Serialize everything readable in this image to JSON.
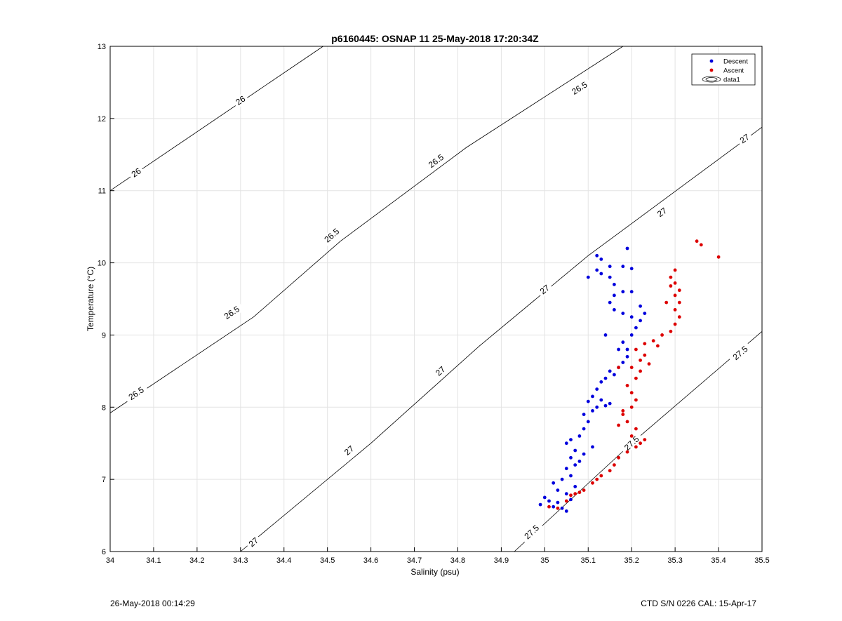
{
  "chart_data": {
    "type": "scatter",
    "title": "p6160445: OSNAP 11 25-May-2018 17:20:34Z",
    "xlabel": "Salinity (psu)",
    "ylabel": "Temperature (°C)",
    "xlim": [
      34,
      35.5
    ],
    "ylim": [
      6,
      13
    ],
    "xticks": [
      "34",
      "34.1",
      "34.2",
      "34.3",
      "34.4",
      "34.5",
      "34.6",
      "34.7",
      "34.8",
      "34.9",
      "35",
      "35.1",
      "35.2",
      "35.3",
      "35.4",
      "35.5"
    ],
    "yticks": [
      "6",
      "7",
      "8",
      "9",
      "10",
      "11",
      "12",
      "13"
    ],
    "grid": true,
    "legend": {
      "placement": "top-right",
      "entries": [
        "Descent",
        "Ascent",
        "data1"
      ]
    },
    "contour_lines": [
      {
        "level": "26",
        "points": [
          [
            34.0,
            11.0
          ],
          [
            34.49,
            13.0
          ]
        ],
        "labels": [
          [
            34.06,
            11.25
          ],
          [
            34.3,
            12.25
          ]
        ]
      },
      {
        "level": "26.5",
        "points": [
          [
            34.0,
            7.92
          ],
          [
            34.33,
            9.25
          ],
          [
            34.53,
            10.3
          ],
          [
            34.82,
            11.6
          ],
          [
            35.18,
            13.0
          ]
        ],
        "labels": [
          [
            34.06,
            8.19
          ],
          [
            34.28,
            9.31
          ],
          [
            34.51,
            10.38
          ],
          [
            34.75,
            11.41
          ],
          [
            35.08,
            12.42
          ]
        ]
      },
      {
        "level": "27",
        "points": [
          [
            34.3,
            6.0
          ],
          [
            34.6,
            7.5
          ],
          [
            34.85,
            8.85
          ],
          [
            35.1,
            10.1
          ],
          [
            35.5,
            11.88
          ]
        ],
        "labels": [
          [
            34.33,
            6.13
          ],
          [
            34.55,
            7.4
          ],
          [
            34.76,
            8.5
          ],
          [
            35.0,
            9.63
          ],
          [
            35.27,
            10.7
          ],
          [
            35.46,
            11.72
          ]
        ]
      },
      {
        "level": "27.5",
        "points": [
          [
            34.93,
            6.0
          ],
          [
            35.2,
            7.5
          ],
          [
            35.5,
            9.05
          ]
        ],
        "labels": [
          [
            34.97,
            6.27
          ],
          [
            35.2,
            7.5
          ],
          [
            35.45,
            8.75
          ]
        ]
      }
    ],
    "series": [
      {
        "name": "Descent",
        "color": "#0000dd",
        "points": [
          [
            34.99,
            6.65
          ],
          [
            35.01,
            6.7
          ],
          [
            35.02,
            6.62
          ],
          [
            35.04,
            6.6
          ],
          [
            35.05,
            6.56
          ],
          [
            35.06,
            6.72
          ],
          [
            35.05,
            6.8
          ],
          [
            35.03,
            6.85
          ],
          [
            35.02,
            6.95
          ],
          [
            35.04,
            7.0
          ],
          [
            35.06,
            7.05
          ],
          [
            35.05,
            7.15
          ],
          [
            35.07,
            7.2
          ],
          [
            35.08,
            7.25
          ],
          [
            35.06,
            7.3
          ],
          [
            35.07,
            7.4
          ],
          [
            35.05,
            7.5
          ],
          [
            35.06,
            7.55
          ],
          [
            35.08,
            7.6
          ],
          [
            35.09,
            7.7
          ],
          [
            35.1,
            7.8
          ],
          [
            35.09,
            7.9
          ],
          [
            35.11,
            7.95
          ],
          [
            35.12,
            8.0
          ],
          [
            35.14,
            8.02
          ],
          [
            35.1,
            8.08
          ],
          [
            35.11,
            8.15
          ],
          [
            35.12,
            8.25
          ],
          [
            35.13,
            8.35
          ],
          [
            35.14,
            8.4
          ],
          [
            35.15,
            8.5
          ],
          [
            35.17,
            8.55
          ],
          [
            35.18,
            8.62
          ],
          [
            35.19,
            8.7
          ],
          [
            35.17,
            8.8
          ],
          [
            35.18,
            8.9
          ],
          [
            35.2,
            9.0
          ],
          [
            35.21,
            9.1
          ],
          [
            35.22,
            9.2
          ],
          [
            35.2,
            9.25
          ],
          [
            35.18,
            9.3
          ],
          [
            35.16,
            9.35
          ],
          [
            35.15,
            9.45
          ],
          [
            35.16,
            9.55
          ],
          [
            35.18,
            9.6
          ],
          [
            35.2,
            9.6
          ],
          [
            35.16,
            9.7
          ],
          [
            35.15,
            9.8
          ],
          [
            35.13,
            9.85
          ],
          [
            35.12,
            9.9
          ],
          [
            35.15,
            9.95
          ],
          [
            35.18,
            9.95
          ],
          [
            35.2,
            9.92
          ],
          [
            35.13,
            10.05
          ],
          [
            35.12,
            10.1
          ],
          [
            35.19,
            10.2
          ],
          [
            35.1,
            9.8
          ],
          [
            35.23,
            9.3
          ],
          [
            35.22,
            9.4
          ],
          [
            35.0,
            6.75
          ],
          [
            35.03,
            6.68
          ],
          [
            35.07,
            6.9
          ],
          [
            35.09,
            7.35
          ],
          [
            35.11,
            7.45
          ],
          [
            35.13,
            8.1
          ],
          [
            35.15,
            8.05
          ],
          [
            35.16,
            8.45
          ],
          [
            35.19,
            8.8
          ],
          [
            35.14,
            9.0
          ]
        ]
      },
      {
        "name": "Ascent",
        "color": "#dd0000",
        "points": [
          [
            35.01,
            6.62
          ],
          [
            35.03,
            6.6
          ],
          [
            35.05,
            6.7
          ],
          [
            35.06,
            6.78
          ],
          [
            35.07,
            6.8
          ],
          [
            35.09,
            6.85
          ],
          [
            35.11,
            6.95
          ],
          [
            35.13,
            7.05
          ],
          [
            35.15,
            7.12
          ],
          [
            35.16,
            7.2
          ],
          [
            35.17,
            7.3
          ],
          [
            35.19,
            7.38
          ],
          [
            35.21,
            7.45
          ],
          [
            35.22,
            7.5
          ],
          [
            35.2,
            7.6
          ],
          [
            35.21,
            7.7
          ],
          [
            35.19,
            7.8
          ],
          [
            35.18,
            7.9
          ],
          [
            35.2,
            8.0
          ],
          [
            35.21,
            8.1
          ],
          [
            35.2,
            8.2
          ],
          [
            35.19,
            8.3
          ],
          [
            35.21,
            8.4
          ],
          [
            35.22,
            8.5
          ],
          [
            35.2,
            8.55
          ],
          [
            35.17,
            8.55
          ],
          [
            35.22,
            8.65
          ],
          [
            35.23,
            8.72
          ],
          [
            35.21,
            8.8
          ],
          [
            35.23,
            8.88
          ],
          [
            35.25,
            8.92
          ],
          [
            35.27,
            9.0
          ],
          [
            35.29,
            9.05
          ],
          [
            35.3,
            9.15
          ],
          [
            35.31,
            9.25
          ],
          [
            35.3,
            9.35
          ],
          [
            35.31,
            9.45
          ],
          [
            35.3,
            9.55
          ],
          [
            35.31,
            9.62
          ],
          [
            35.3,
            9.72
          ],
          [
            35.29,
            9.8
          ],
          [
            35.3,
            9.9
          ],
          [
            35.35,
            10.3
          ],
          [
            35.36,
            10.25
          ],
          [
            35.4,
            10.08
          ],
          [
            35.18,
            7.95
          ],
          [
            35.17,
            7.75
          ],
          [
            35.23,
            7.55
          ],
          [
            35.08,
            6.82
          ],
          [
            35.12,
            7.0
          ],
          [
            35.24,
            8.6
          ],
          [
            35.26,
            8.85
          ],
          [
            35.28,
            9.45
          ],
          [
            35.29,
            9.68
          ]
        ]
      }
    ]
  },
  "footer": {
    "left": "26-May-2018 00:14:29",
    "right": "CTD S/N 0226  CAL: 15-Apr-17"
  }
}
